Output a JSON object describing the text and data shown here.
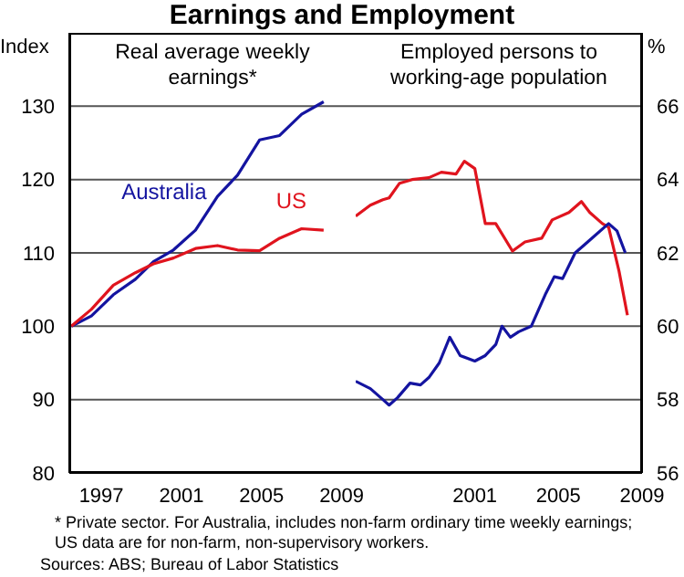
{
  "chart_data": [
    {
      "type": "line",
      "title": "Earnings and Employment",
      "subtitle": "Real average weekly earnings*",
      "ylabel": "Index",
      "xlim": [
        1995.4,
        2009.7
      ],
      "xticks": [
        1997,
        2001,
        2005,
        2009
      ],
      "ylim": [
        80,
        140
      ],
      "yticks": [
        80,
        90,
        100,
        110,
        120,
        130
      ],
      "grid": "y",
      "series": [
        {
          "name": "Australia",
          "color": "#1414a0",
          "x": [
            1995.5,
            1996.5,
            1997.6,
            1998.7,
            1999.6,
            2000.6,
            2001.7,
            2002.8,
            2003.8,
            2004.9,
            2005.9,
            2007.0,
            2008.1
          ],
          "values": [
            100,
            101.4,
            104.3,
            106.4,
            108.8,
            110.4,
            113.1,
            117.7,
            120.6,
            125.4,
            126,
            128.9,
            130.6
          ]
        },
        {
          "name": "US",
          "color": "#e0141e",
          "x": [
            1995.5,
            1996.5,
            1997.6,
            1998.7,
            1999.6,
            2000.6,
            2001.7,
            2002.8,
            2003.8,
            2004.9,
            2005.9,
            2007.0,
            2008.1
          ],
          "values": [
            100,
            102.3,
            105.6,
            107.3,
            108.5,
            109.3,
            110.6,
            111,
            110.4,
            110.3,
            112,
            113.3,
            113.1
          ]
        }
      ],
      "annotations": [
        "* Private sector. For Australia, includes non-farm ordinary time weekly earnings; US data are for non-farm, non-supervisory workers.",
        "Sources: ABS; Bureau of Labor Statistics"
      ]
    },
    {
      "type": "line",
      "subtitle": "Employed persons to working-age population",
      "y2label": "%",
      "xlim": [
        1995.3,
        2009.0
      ],
      "xticks": [
        2001,
        2005,
        2009
      ],
      "y2lim": [
        56,
        68
      ],
      "y2ticks": [
        56,
        58,
        60,
        62,
        64,
        66
      ],
      "grid": "y",
      "series": [
        {
          "color": "#e0141e",
          "axis": "y2",
          "x": [
            1995.3,
            1996.0,
            1996.6,
            1996.9,
            1997.4,
            1998.0,
            1998.8,
            1999.4,
            2000.1,
            2000.5,
            2001.0,
            2001.5,
            2002.0,
            2002.8,
            2003.4,
            2004.2,
            2004.7,
            2005.5,
            2006.1,
            2006.5,
            2007.1,
            2007.4,
            2007.9,
            2008.3
          ],
          "values": [
            63.0,
            63.3,
            63.45,
            63.5,
            63.9,
            64.0,
            64.05,
            64.2,
            64.15,
            64.5,
            64.3,
            62.8,
            62.8,
            62.05,
            62.3,
            62.4,
            62.9,
            63.1,
            63.4,
            63.1,
            62.8,
            62.7,
            61.5,
            60.3
          ]
        },
        {
          "color": "#1414a0",
          "axis": "y2",
          "x": [
            1995.3,
            1996.0,
            1996.6,
            1996.9,
            1997.3,
            1997.9,
            1998.4,
            1998.8,
            1999.3,
            1999.8,
            2000.3,
            2001.0,
            2001.5,
            2002.0,
            2002.3,
            2002.7,
            2003.1,
            2003.7,
            2004.4,
            2004.8,
            2005.2,
            2005.8,
            2006.4,
            2007.4,
            2007.8,
            2008.2
          ],
          "values": [
            58.5,
            58.3,
            58.0,
            57.85,
            58.05,
            58.45,
            58.4,
            58.6,
            59.0,
            59.7,
            59.2,
            59.05,
            59.2,
            59.5,
            60.0,
            59.7,
            59.85,
            60.0,
            60.9,
            61.35,
            61.3,
            62.0,
            62.3,
            62.8,
            62.6,
            62.0
          ]
        }
      ]
    }
  ]
}
